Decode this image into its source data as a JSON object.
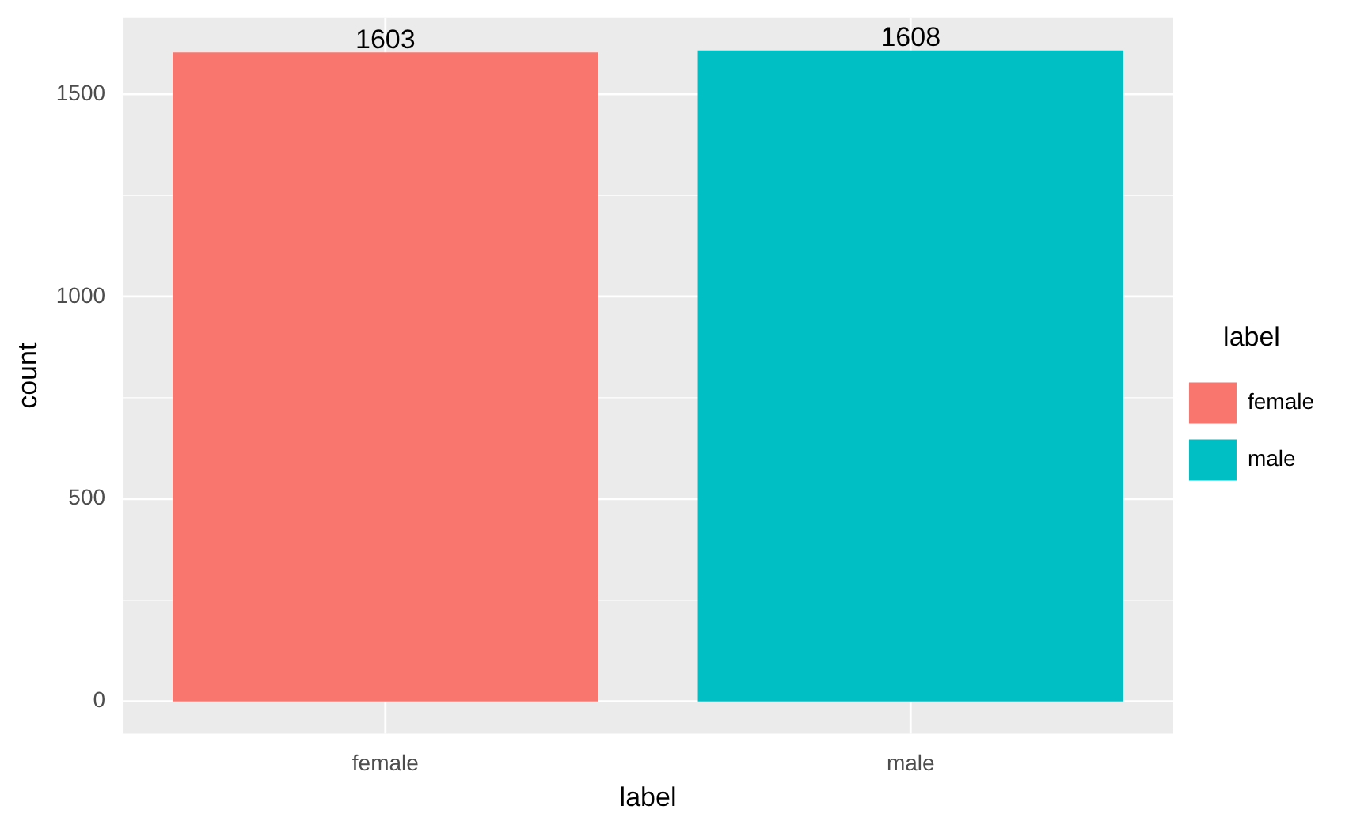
{
  "chart_data": {
    "type": "bar",
    "xlabel": "label",
    "ylabel": "count",
    "legend_title": "label",
    "categories": [
      "female",
      "male"
    ],
    "series": [
      {
        "name": "female",
        "color": "#f8766d",
        "values": [
          1603,
          null
        ]
      },
      {
        "name": "male",
        "color": "#00bfc4",
        "values": [
          null,
          1608
        ]
      }
    ],
    "ylim": [
      -80,
      1688
    ],
    "yticks": [
      0,
      {
        "value": 250,
        "label": null
      },
      500,
      {
        "value": 750,
        "label": null
      },
      1000,
      {
        "value": 1250,
        "label": null
      },
      1500
    ],
    "grid": true,
    "legend": "right",
    "data_labels": true
  }
}
